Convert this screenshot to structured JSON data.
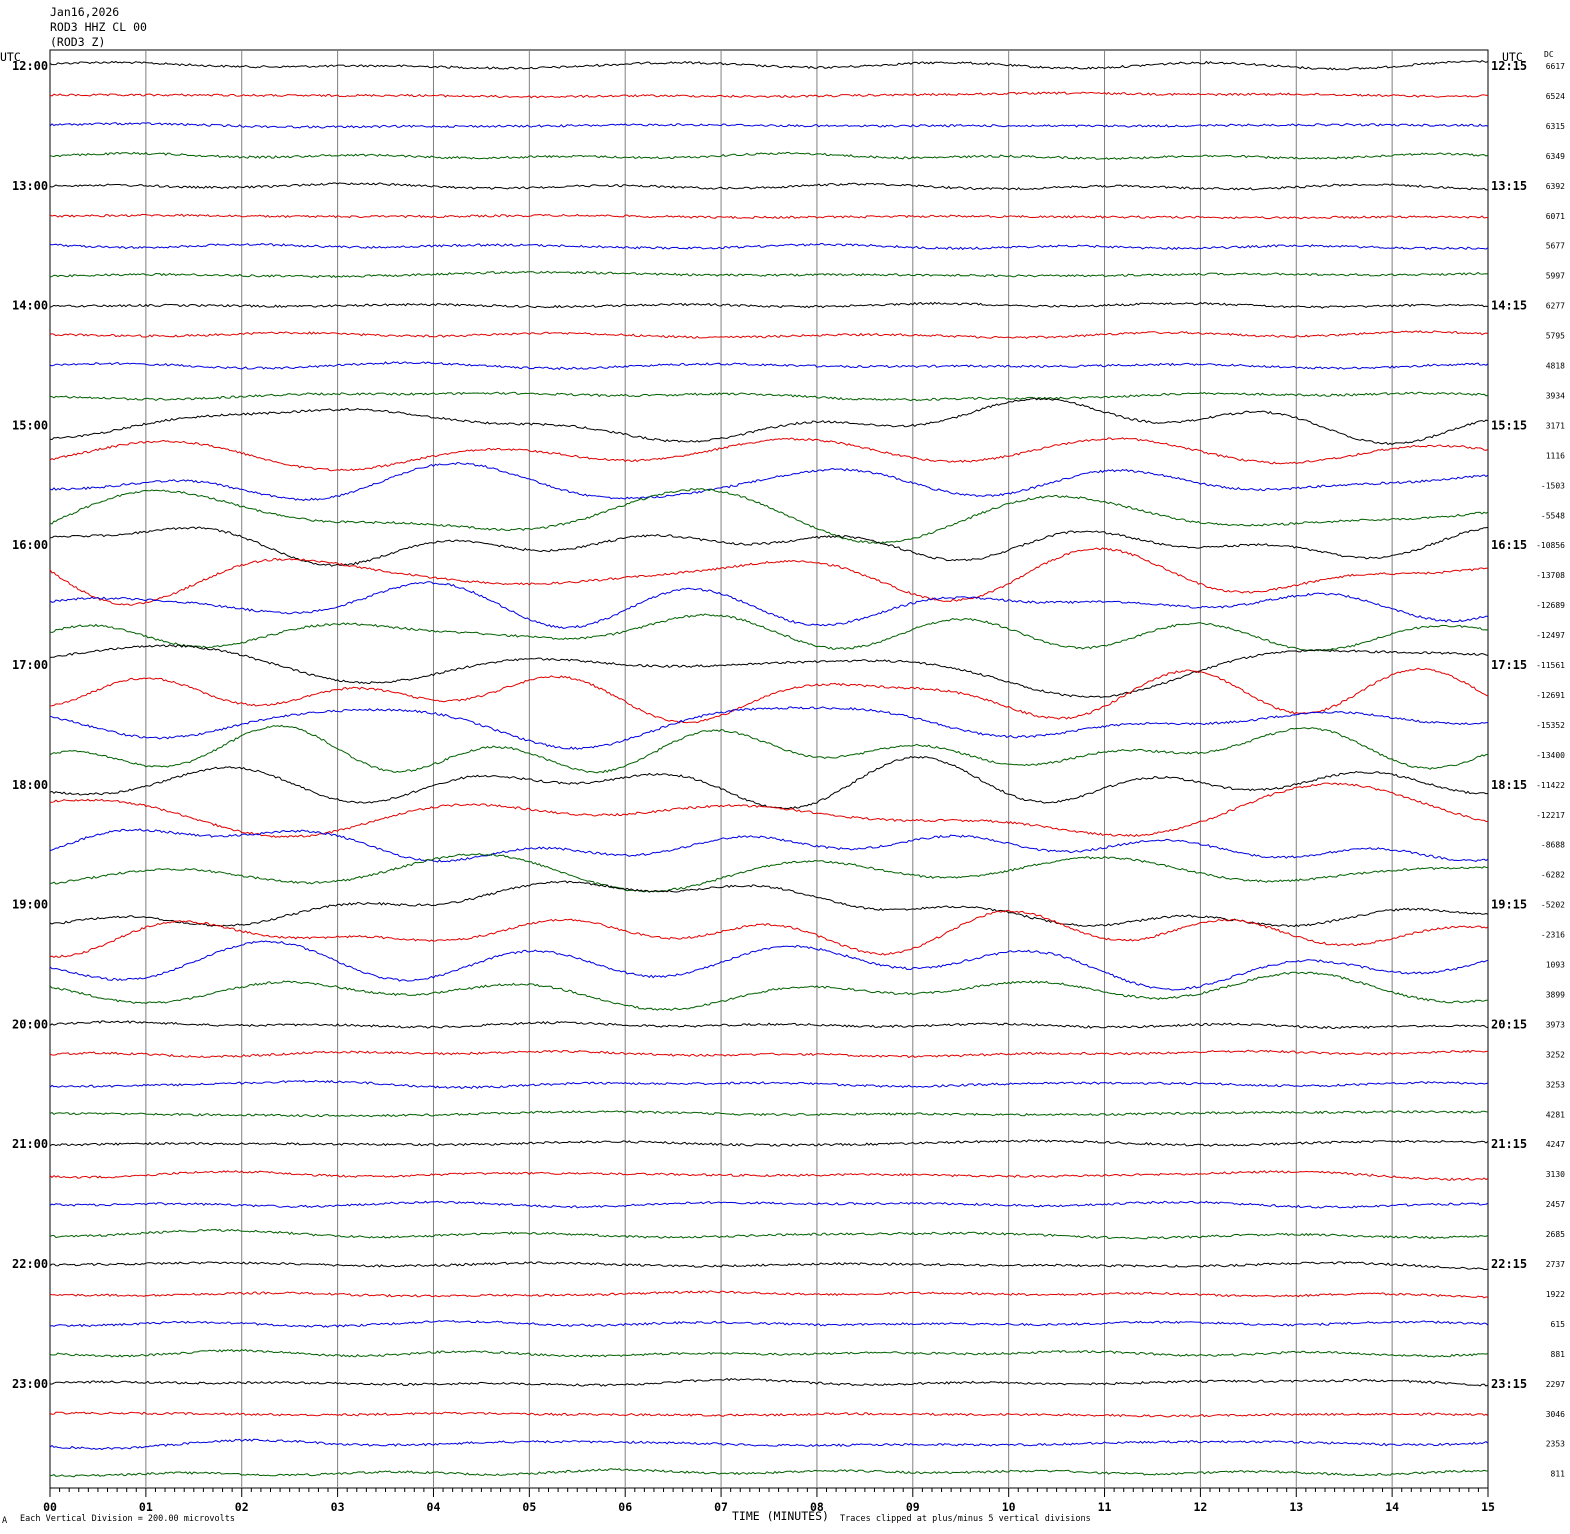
{
  "header": {
    "date": "Jan16,2026",
    "station": "ROD3 HHZ CL 00",
    "component": "(ROD3 Z)"
  },
  "left_utc_label": "UTC",
  "right_utc_label": "UTC",
  "dc_label": "DC",
  "left_hour_labels": [
    "12:00",
    "13:00",
    "14:00",
    "15:00",
    "16:00",
    "17:00",
    "18:00",
    "19:00",
    "20:00",
    "21:00",
    "22:00",
    "23:00"
  ],
  "right_hour_labels": [
    "12:15",
    "13:15",
    "14:15",
    "15:15",
    "16:15",
    "17:15",
    "18:15",
    "19:15",
    "20:15",
    "21:15",
    "22:15",
    "23:15"
  ],
  "footer": {
    "scale_note": "Each Vertical Division =  200.00 microvolts",
    "clip_note": "Traces clipped at plus/minus 5 vertical divisions",
    "corner_mark": "A"
  },
  "colors": {
    "trace_cycle": [
      "#000000",
      "#e00000",
      "#0000e0",
      "#006000"
    ],
    "grid": "#808080"
  },
  "chart_data": {
    "type": "line",
    "title": "",
    "xlabel": "TIME (MINUTES)",
    "ylabel": "",
    "x_ticks": [
      "00",
      "01",
      "02",
      "03",
      "04",
      "05",
      "06",
      "07",
      "08",
      "09",
      "10",
      "11",
      "12",
      "13",
      "14",
      "15"
    ],
    "xlim": [
      0,
      15
    ],
    "rows_per_hour": 4,
    "dc_offsets": [
      6617,
      6524,
      6315,
      6349,
      6392,
      6071,
      5677,
      5997,
      6277,
      5795,
      4818,
      3934,
      3171,
      1116,
      -1503,
      -5548,
      -10856,
      -13708,
      -12689,
      -12497,
      -11561,
      -12691,
      -15352,
      -13400,
      -11422,
      -12217,
      -8688,
      -6282,
      -5202,
      -2316,
      1093,
      3899,
      3973,
      3252,
      3253,
      4281,
      4247,
      3130,
      2457,
      2685,
      2737,
      1922,
      615,
      881,
      2297,
      3046,
      2353,
      811
    ]
  }
}
